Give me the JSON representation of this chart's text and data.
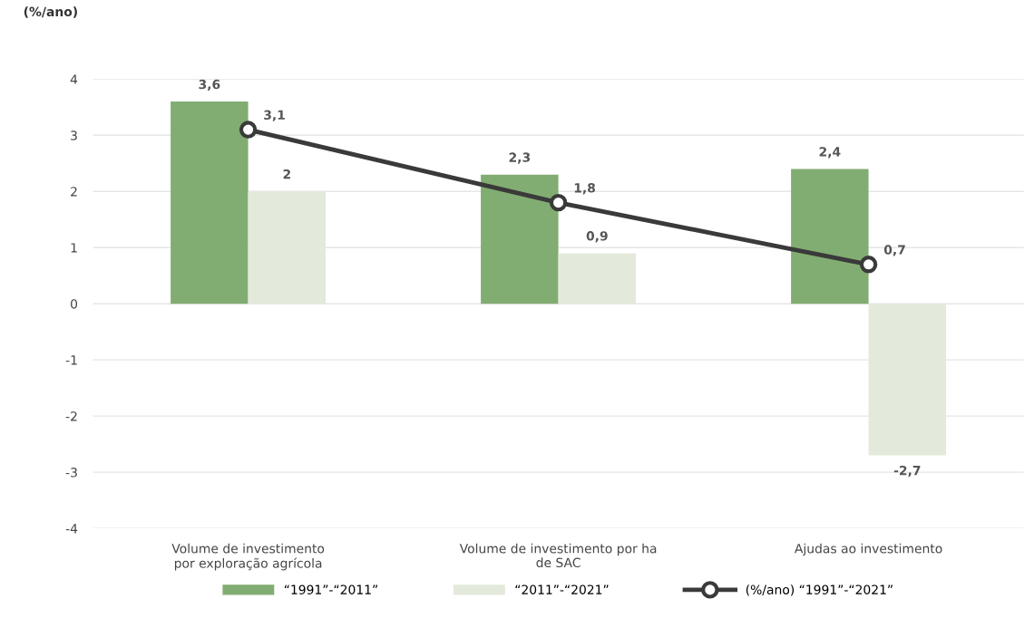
{
  "chart_data": {
    "type": "bar",
    "ylabel": "(%/ano)",
    "categories": [
      "Volume de investimento\npor exploração agrícola",
      "Volume de investimento por ha\nde SAC",
      "Ajudas ao investimento"
    ],
    "series": [
      {
        "name": "“1991”-“2011”",
        "color": "#82ad72",
        "values": [
          3.6,
          2.3,
          2.4
        ],
        "value_labels": [
          "3,6",
          "2,3",
          "2,4"
        ]
      },
      {
        "name": "“2011”-“2021”",
        "color": "#e3eadb",
        "values": [
          2,
          0.9,
          -2.7
        ],
        "value_labels": [
          "2",
          "0,9",
          "-2,7"
        ]
      },
      {
        "name": "(%/ano) “1991”-“2021”",
        "type": "line",
        "color": "#3a3a3a",
        "marker": "circle",
        "values": [
          3.1,
          1.8,
          0.7
        ],
        "value_labels": [
          "3,1",
          "1,8",
          "0,7"
        ]
      }
    ],
    "ylim": [
      -4,
      4
    ],
    "yticks": [
      -4,
      -3,
      -2,
      -1,
      0,
      1,
      2,
      3,
      4
    ],
    "grid": "y",
    "legend": "bottom"
  }
}
